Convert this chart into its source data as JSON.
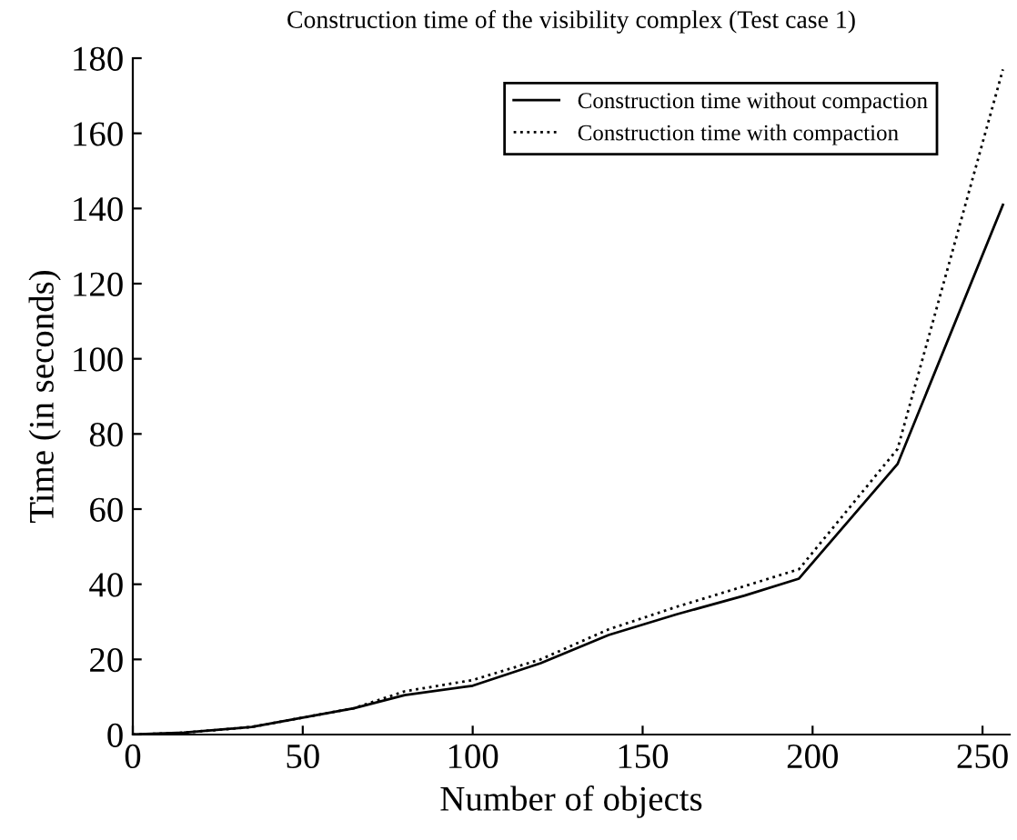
{
  "chart_data": {
    "type": "line",
    "title": "Construction time of the visibility complex (Test case 1)",
    "xlabel": "Number of objects",
    "ylabel": "Time (in seconds)",
    "x": [
      0,
      15,
      35,
      50,
      65,
      80,
      100,
      120,
      140,
      160,
      180,
      196,
      225,
      256
    ],
    "series": [
      {
        "name": "Construction time without compaction",
        "color": "#000000",
        "line_style": "solid",
        "values": [
          0,
          0.5,
          2,
          4.5,
          7,
          10.5,
          13,
          19,
          26.5,
          32,
          37,
          41.5,
          72,
          141
        ]
      },
      {
        "name": "Construction time with compaction",
        "color": "#000000",
        "line_style": "dotted",
        "values": [
          0,
          0.5,
          2,
          4.5,
          7,
          11.5,
          14.5,
          20,
          28,
          34,
          39.5,
          44,
          76,
          177
        ]
      }
    ],
    "xlim": [
      0,
      258
    ],
    "xticks": [
      0,
      50,
      100,
      150,
      200,
      250
    ],
    "ylim": [
      0,
      180
    ],
    "yticks": [
      0,
      20,
      40,
      60,
      80,
      100,
      120,
      140,
      160,
      180
    ],
    "grid": false,
    "legend": "top right"
  }
}
